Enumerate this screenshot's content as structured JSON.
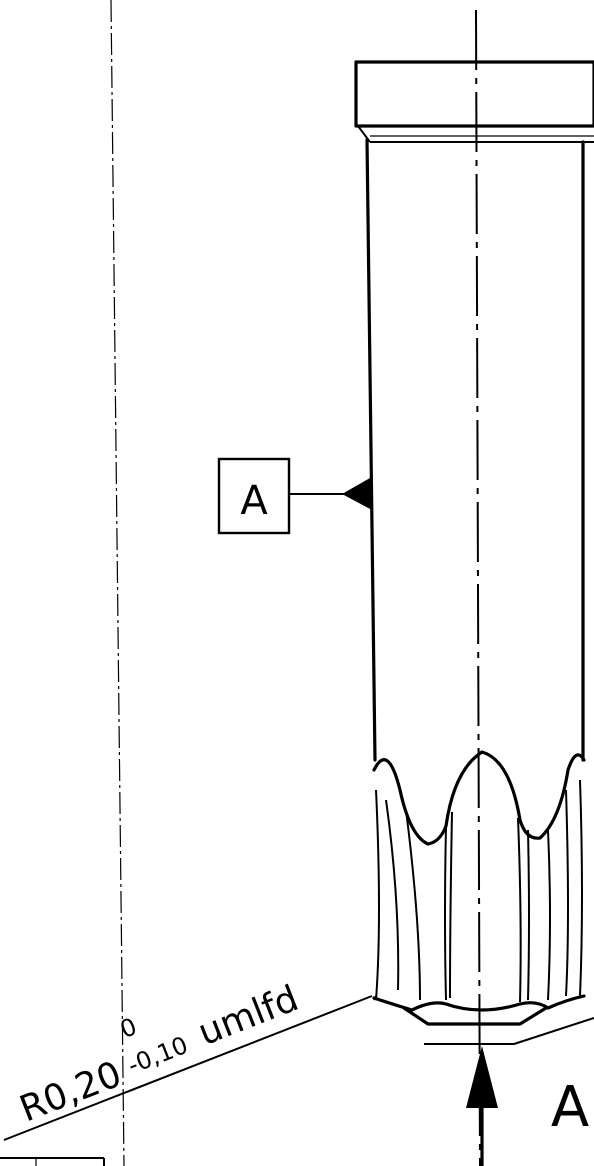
{
  "datum": {
    "label": "A"
  },
  "section_marker": {
    "label": "A"
  },
  "radius_callout": {
    "nominal": "R0,20",
    "upper_tolerance": "0",
    "lower_tolerance": "-0,10",
    "note": "umlfd"
  }
}
